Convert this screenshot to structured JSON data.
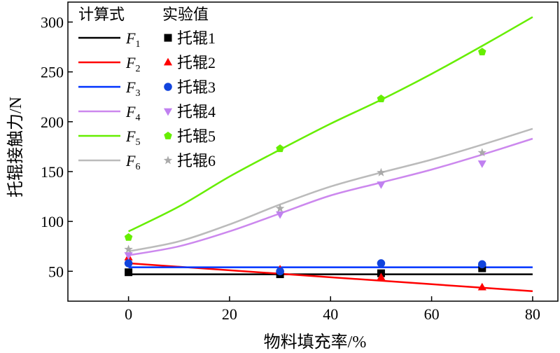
{
  "chart_data": {
    "type": "line",
    "xlabel": "物料填充率/%",
    "ylabel": "托辊接触力/N",
    "xlim": [
      -12,
      85
    ],
    "ylim": [
      20,
      320
    ],
    "xticks": [
      0,
      20,
      40,
      60,
      80
    ],
    "yticks": [
      50,
      100,
      150,
      200,
      250,
      300
    ],
    "grid": false,
    "legend": {
      "placement": "top-left",
      "headers": [
        "计算式",
        "实验值"
      ],
      "calc_entries": [
        {
          "base": "F",
          "sub": "1",
          "color": "#000000"
        },
        {
          "base": "F",
          "sub": "2",
          "color": "#ff0000"
        },
        {
          "base": "F",
          "sub": "3",
          "color": "#0033ff"
        },
        {
          "base": "F",
          "sub": "4",
          "color": "#cc88ee"
        },
        {
          "base": "F",
          "sub": "5",
          "color": "#66ee00"
        },
        {
          "base": "F",
          "sub": "6",
          "color": "#bbbbbb"
        }
      ],
      "exp_entries": [
        "托辊1",
        "托辊2",
        "托辊3",
        "托辊4",
        "托辊5",
        "托辊6"
      ]
    },
    "series": [
      {
        "kind": "calc",
        "color": "#000000",
        "x": [
          0,
          20,
          40,
          60,
          80
        ],
        "y": [
          47,
          47,
          47,
          47,
          47
        ]
      },
      {
        "kind": "calc",
        "color": "#ff0000",
        "x": [
          0,
          20,
          40,
          60,
          80
        ],
        "y": [
          58,
          51,
          44,
          37,
          30
        ]
      },
      {
        "kind": "calc",
        "color": "#0033ff",
        "x": [
          0,
          20,
          40,
          60,
          80
        ],
        "y": [
          54,
          54,
          54,
          54,
          54
        ]
      },
      {
        "kind": "calc",
        "color": "#cc88ee",
        "x": [
          0,
          10,
          20,
          30,
          40,
          50,
          60,
          70,
          80
        ],
        "y": [
          66,
          75,
          90,
          108,
          126,
          139,
          152,
          167,
          183
        ]
      },
      {
        "kind": "calc",
        "color": "#66ee00",
        "x": [
          0,
          10,
          20,
          30,
          40,
          50,
          60,
          70,
          80
        ],
        "y": [
          90,
          115,
          145,
          172,
          198,
          222,
          248,
          276,
          305
        ]
      },
      {
        "kind": "calc",
        "color": "#bbbbbb",
        "x": [
          0,
          10,
          20,
          30,
          40,
          50,
          60,
          70,
          80
        ],
        "y": [
          70,
          80,
          97,
          117,
          135,
          149,
          162,
          177,
          193
        ]
      },
      {
        "kind": "exp",
        "marker": "square",
        "color": "#000000",
        "x": [
          0,
          30,
          50,
          70
        ],
        "y": [
          49,
          47,
          48,
          53
        ]
      },
      {
        "kind": "exp",
        "marker": "triangle-up",
        "color": "#ff0000",
        "x": [
          0,
          30,
          50,
          70
        ],
        "y": [
          64,
          52,
          44,
          34
        ]
      },
      {
        "kind": "exp",
        "marker": "circle",
        "color": "#1144dd",
        "x": [
          0,
          30,
          50,
          70
        ],
        "y": [
          58,
          50,
          58,
          57
        ]
      },
      {
        "kind": "exp",
        "marker": "triangle-down",
        "color": "#c080f0",
        "x": [
          0,
          30,
          50,
          70
        ],
        "y": [
          66,
          107,
          137,
          158
        ]
      },
      {
        "kind": "exp",
        "marker": "pentagon",
        "color": "#66ee00",
        "x": [
          0,
          30,
          50,
          70
        ],
        "y": [
          84,
          173,
          223,
          270
        ]
      },
      {
        "kind": "exp",
        "marker": "star",
        "color": "#aaaaaa",
        "x": [
          0,
          30,
          50,
          70
        ],
        "y": [
          72,
          113,
          149,
          169
        ]
      }
    ]
  }
}
